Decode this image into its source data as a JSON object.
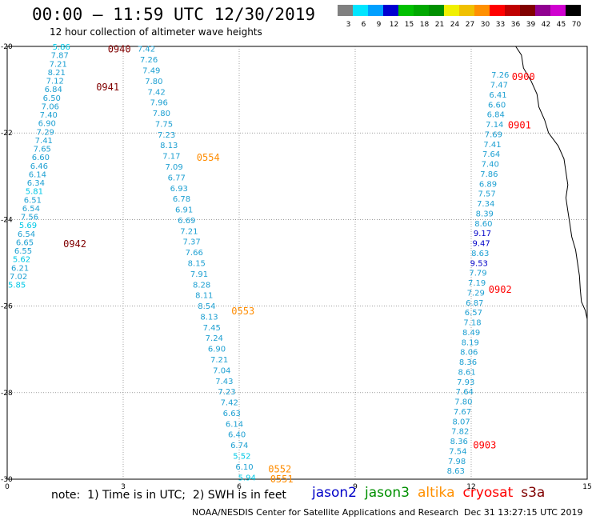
{
  "header": {
    "title": "00:00 – 11:59 UTC 12/30/2019",
    "subtitle": "12 hour collection of altimeter wave heights"
  },
  "color_scale": {
    "unit": "(ft)",
    "bins": [
      {
        "label": "3",
        "color": "#808080"
      },
      {
        "label": "6",
        "color": "#00e5ff"
      },
      {
        "label": "9",
        "color": "#00a0ff"
      },
      {
        "label": "12",
        "color": "#0000d0"
      },
      {
        "label": "15",
        "color": "#00c000"
      },
      {
        "label": "18",
        "color": "#00a800"
      },
      {
        "label": "21",
        "color": "#009000"
      },
      {
        "label": "24",
        "color": "#f0f000"
      },
      {
        "label": "27",
        "color": "#f0c000"
      },
      {
        "label": "30",
        "color": "#ff9000"
      },
      {
        "label": "33",
        "color": "#ff0000"
      },
      {
        "label": "36",
        "color": "#c00000"
      },
      {
        "label": "39",
        "color": "#800000"
      },
      {
        "label": "42",
        "color": "#900090"
      },
      {
        "label": "45",
        "color": "#d000d0"
      },
      {
        "label": "70",
        "color": "#000000"
      }
    ]
  },
  "map": {
    "lon_range": [
      0,
      15
    ],
    "lat_range": [
      -20,
      -30
    ],
    "x_ticks": [
      "0",
      "3",
      "6",
      "9",
      "12",
      "15"
    ],
    "y_ticks": [
      "-20",
      "-22",
      "-24",
      "-26",
      "-28",
      "-30"
    ]
  },
  "tracks": [
    {
      "id": "left",
      "values": [
        "5.86",
        "7.87",
        "7.21",
        "8.21",
        "7.12",
        "6.84",
        "6.50",
        "7.06",
        "7.40",
        "6.90",
        "7.29",
        "7.41",
        "7.65",
        "6.60",
        "6.46",
        "6.14",
        "6.34",
        "5.81",
        "6.51",
        "6.54",
        "7.56",
        "5.69",
        "6.54",
        "6.65",
        "6.55",
        "5.62",
        "6.21",
        "7.02",
        "5.85"
      ],
      "colors": [
        "#00c8e6",
        "#1ea0d2",
        "#1ea0d2",
        "#1ea0d2",
        "#1ea0d2",
        "#1ea0d2",
        "#1ea0d2",
        "#1ea0d2",
        "#1ea0d2",
        "#1ea0d2",
        "#1ea0d2",
        "#1ea0d2",
        "#1ea0d2",
        "#1ea0d2",
        "#1ea0d2",
        "#1ea0d2",
        "#1ea0d2",
        "#00c8e6",
        "#1ea0d2",
        "#1ea0d2",
        "#1ea0d2",
        "#00c8e6",
        "#1ea0d2",
        "#1ea0d2",
        "#1ea0d2",
        "#00c8e6",
        "#1ea0d2",
        "#1ea0d2",
        "#00c8e6"
      ],
      "start": [
        -20.0,
        1.4
      ],
      "end": [
        -25.5,
        0.25
      ]
    },
    {
      "id": "middle",
      "values": [
        "7.42",
        "7.26",
        "7.49",
        "7.80",
        "7.42",
        "7.96",
        "7.80",
        "7.75",
        "7.23",
        "8.13",
        "7.17",
        "7.09",
        "6.77",
        "6.93",
        "6.78",
        "6.91",
        "6.69",
        "7.21",
        "7.37",
        "7.66",
        "8.15",
        "7.91",
        "8.28",
        "8.11",
        "8.54",
        "8.13",
        "7.45",
        "7.24",
        "6.90",
        "7.21",
        "7.04",
        "7.43",
        "7.23",
        "7.42",
        "6.63",
        "6.14",
        "6.40",
        "6.74",
        "5.52",
        "6.10",
        "5.94"
      ],
      "colors": [
        "#1ea0d2",
        "#1ea0d2",
        "#1ea0d2",
        "#1ea0d2",
        "#1ea0d2",
        "#1ea0d2",
        "#1ea0d2",
        "#1ea0d2",
        "#1ea0d2",
        "#1ea0d2",
        "#1ea0d2",
        "#1ea0d2",
        "#1ea0d2",
        "#1ea0d2",
        "#1ea0d2",
        "#1ea0d2",
        "#1ea0d2",
        "#1ea0d2",
        "#1ea0d2",
        "#1ea0d2",
        "#1ea0d2",
        "#1ea0d2",
        "#1ea0d2",
        "#1ea0d2",
        "#1ea0d2",
        "#1ea0d2",
        "#1ea0d2",
        "#1ea0d2",
        "#1ea0d2",
        "#1ea0d2",
        "#1ea0d2",
        "#1ea0d2",
        "#1ea0d2",
        "#1ea0d2",
        "#1ea0d2",
        "#1ea0d2",
        "#1ea0d2",
        "#1ea0d2",
        "#00c8e6",
        "#1ea0d2",
        "#00c8e6"
      ],
      "start": [
        -20.05,
        3.6
      ],
      "end": [
        -29.95,
        6.2
      ]
    },
    {
      "id": "right",
      "values": [
        "7.26",
        "7.47",
        "6.41",
        "6.60",
        "6.84",
        "7.14",
        "7.69",
        "7.41",
        "7.64",
        "7.40",
        "7.86",
        "6.89",
        "7.57",
        "7.34",
        "8.39",
        "8.60",
        "9.17",
        "9.47",
        "8.63",
        "9.53",
        "7.79",
        "7.19",
        "7.29",
        "6.87",
        "6.57",
        "7.18",
        "8.49",
        "8.19",
        "8.06",
        "8.36",
        "8.61",
        "7.93",
        "7.64",
        "7.80",
        "7.67",
        "8.07",
        "7.82",
        "8.36",
        "7.54",
        "7.98",
        "8.63"
      ],
      "colors": [
        "#1ea0d2",
        "#1ea0d2",
        "#1ea0d2",
        "#1ea0d2",
        "#1ea0d2",
        "#1ea0d2",
        "#1ea0d2",
        "#1ea0d2",
        "#1ea0d2",
        "#1ea0d2",
        "#1ea0d2",
        "#1ea0d2",
        "#1ea0d2",
        "#1ea0d2",
        "#1ea0d2",
        "#1ea0d2",
        "#0000c8",
        "#0000c8",
        "#1ea0d2",
        "#0000c8",
        "#1ea0d2",
        "#1ea0d2",
        "#1ea0d2",
        "#1ea0d2",
        "#1ea0d2",
        "#1ea0d2",
        "#1ea0d2",
        "#1ea0d2",
        "#1ea0d2",
        "#1ea0d2",
        "#1ea0d2",
        "#1ea0d2",
        "#1ea0d2",
        "#1ea0d2",
        "#1ea0d2",
        "#1ea0d2",
        "#1ea0d2",
        "#1ea0d2",
        "#1ea0d2",
        "#1ea0d2",
        "#1ea0d2"
      ],
      "start": [
        -20.65,
        12.75
      ],
      "end": [
        -29.8,
        11.6
      ]
    }
  ],
  "time_labels": [
    {
      "text": "0940",
      "lat": -20.05,
      "lon": 2.6,
      "color": "#800000"
    },
    {
      "text": "0941",
      "lat": -20.92,
      "lon": 2.3,
      "color": "#800000"
    },
    {
      "text": "0942",
      "lat": -24.55,
      "lon": 1.45,
      "color": "#800000"
    },
    {
      "text": "0554",
      "lat": -22.55,
      "lon": 4.9,
      "color": "#ff8c00"
    },
    {
      "text": "0553",
      "lat": -26.1,
      "lon": 5.8,
      "color": "#ff8c00"
    },
    {
      "text": "0552",
      "lat": -29.75,
      "lon": 6.75,
      "color": "#ff8c00"
    },
    {
      "text": "0551",
      "lat": -29.98,
      "lon": 6.8,
      "color": "#ff8c00"
    },
    {
      "text": "0900",
      "lat": -20.68,
      "lon": 13.05,
      "color": "#ff0000"
    },
    {
      "text": "0901",
      "lat": -21.8,
      "lon": 12.95,
      "color": "#ff0000"
    },
    {
      "text": "0902",
      "lat": -25.6,
      "lon": 12.45,
      "color": "#ff0000"
    },
    {
      "text": "0903",
      "lat": -29.2,
      "lon": 12.05,
      "color": "#ff0000"
    }
  ],
  "coastline": [
    [
      -20.0,
      13.15
    ],
    [
      -20.2,
      13.3
    ],
    [
      -20.5,
      13.35
    ],
    [
      -20.8,
      13.55
    ],
    [
      -21.1,
      13.7
    ],
    [
      -21.4,
      13.75
    ],
    [
      -21.7,
      13.9
    ],
    [
      -22.0,
      14.0
    ],
    [
      -22.3,
      14.25
    ],
    [
      -22.6,
      14.4
    ],
    [
      -22.9,
      14.45
    ],
    [
      -23.2,
      14.5
    ],
    [
      -23.5,
      14.45
    ],
    [
      -23.8,
      14.5
    ],
    [
      -24.1,
      14.55
    ],
    [
      -24.4,
      14.6
    ],
    [
      -24.7,
      14.7
    ],
    [
      -25.0,
      14.75
    ],
    [
      -25.3,
      14.8
    ],
    [
      -25.6,
      14.82
    ],
    [
      -25.9,
      14.85
    ],
    [
      -26.1,
      14.95
    ],
    [
      -26.3,
      15.0
    ]
  ],
  "footer": {
    "note": "note:  1) Time is in UTC;  2) SWH is in feet",
    "satellites": [
      {
        "name": "jason2",
        "color": "#0000c8"
      },
      {
        "name": "jason3",
        "color": "#009000"
      },
      {
        "name": "altika",
        "color": "#ff9000"
      },
      {
        "name": "cryosat",
        "color": "#ff0000"
      },
      {
        "name": "s3a",
        "color": "#800000"
      }
    ],
    "credit": "NOAA/NESDIS Center for Satellite Applications and Research",
    "timestamp": "Dec 31 13:27:15 UTC 2019"
  }
}
